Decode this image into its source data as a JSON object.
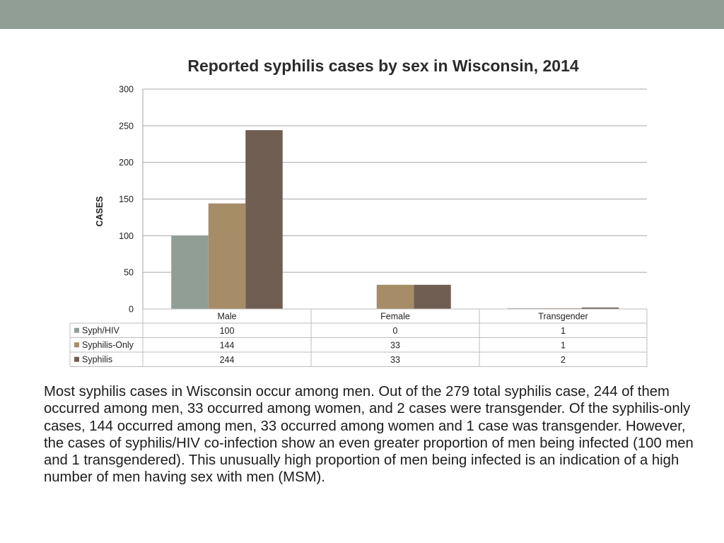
{
  "colors": {
    "band": "#909e95",
    "syph_hiv": "#909e95",
    "syphilis_only": "#a78c68",
    "syphilis": "#705e53",
    "grid": "#a6a6a6",
    "table_border": "#bdbdbd"
  },
  "chart_data": {
    "type": "bar",
    "title": "Reported syphilis cases by sex in Wisconsin, 2014",
    "ylabel": "CASES",
    "xlabel": "",
    "ylim": [
      0,
      300
    ],
    "yticks": [
      0,
      50,
      100,
      150,
      200,
      250,
      300
    ],
    "categories": [
      "Male",
      "Female",
      "Transgender"
    ],
    "series": [
      {
        "name": "Syph/HIV",
        "values": [
          100,
          0,
          1
        ],
        "color": "#909e95"
      },
      {
        "name": "Syphilis-Only",
        "values": [
          144,
          33,
          1
        ],
        "color": "#a78c68"
      },
      {
        "name": "Syphilis",
        "values": [
          244,
          33,
          2
        ],
        "color": "#705e53"
      }
    ],
    "legend": "data-table",
    "grid": true
  },
  "body_text": "Most syphilis cases in Wisconsin occur among men. Out of the 279 total syphilis case, 244 of them occurred among men, 33 occurred among women, and 2 cases were transgender. Of the syphilis-only cases, 144 occurred among men, 33 occurred among women and 1 case was transgender. However, the cases of syphilis/HIV co-infection show an even greater proportion of men being infected (100 men and 1 transgendered). This unusually high proportion of men being infected is an indication of a high number of men having sex with men (MSM)."
}
